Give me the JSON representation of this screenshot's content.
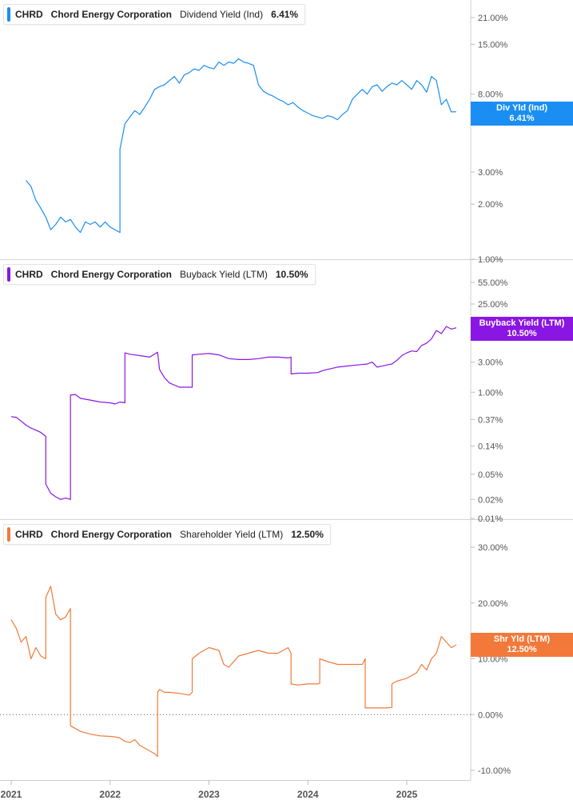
{
  "colors": {
    "dividend": "#1a8ef2",
    "buyback": "#8a16e3",
    "shareholder": "#f2793a",
    "grid": "#d9d9d9",
    "axis_text": "#555555"
  },
  "x_axis": {
    "ticks": [
      {
        "label": "2021",
        "year": 2021.0
      },
      {
        "label": "2022",
        "year": 2022.0
      },
      {
        "label": "2023",
        "year": 2023.0
      },
      {
        "label": "2024",
        "year": 2024.0
      },
      {
        "label": "2025",
        "year": 2025.0
      }
    ]
  },
  "panels": [
    {
      "legend": {
        "ticker": "CHRD",
        "company": "Chord Energy Corporation",
        "metric": "Dividend Yield (Ind)",
        "value": "6.41%"
      },
      "tag": {
        "line1": "Div Yld (Ind)",
        "line2": "6.41%"
      }
    },
    {
      "legend": {
        "ticker": "CHRD",
        "company": "Chord Energy Corporation",
        "metric": "Buyback Yield (LTM)",
        "value": "10.50%"
      },
      "tag": {
        "line1": "Buyback Yield (LTM)",
        "line2": "10.50%"
      }
    },
    {
      "legend": {
        "ticker": "CHRD",
        "company": "Chord Energy Corporation",
        "metric": "Shareholder Yield (LTM)",
        "value": "12.50%"
      },
      "tag": {
        "line1": "Shr Yld (LTM)",
        "line2": "12.50%"
      }
    }
  ],
  "chart_data": [
    {
      "type": "line",
      "series": [
        {
          "name": "Dividend Yield (Ind)",
          "color": "#1a8ef2",
          "x": [
            2021.15,
            2021.2,
            2021.25,
            2021.3,
            2021.35,
            2021.4,
            2021.45,
            2021.5,
            2021.55,
            2021.6,
            2021.65,
            2021.7,
            2021.75,
            2021.8,
            2021.85,
            2021.9,
            2021.95,
            2022.0,
            2022.05,
            2022.1,
            2022.1,
            2022.15,
            2022.2,
            2022.25,
            2022.3,
            2022.35,
            2022.4,
            2022.45,
            2022.5,
            2022.55,
            2022.6,
            2022.65,
            2022.7,
            2022.75,
            2022.8,
            2022.85,
            2022.9,
            2022.95,
            2023.0,
            2023.05,
            2023.1,
            2023.15,
            2023.2,
            2023.25,
            2023.3,
            2023.35,
            2023.4,
            2023.45,
            2023.5,
            2023.55,
            2023.6,
            2023.65,
            2023.7,
            2023.75,
            2023.8,
            2023.85,
            2023.9,
            2023.95,
            2024.0,
            2024.05,
            2024.1,
            2024.15,
            2024.2,
            2024.25,
            2024.3,
            2024.35,
            2024.4,
            2024.45,
            2024.5,
            2024.55,
            2024.6,
            2024.65,
            2024.7,
            2024.75,
            2024.8,
            2024.85,
            2024.9,
            2024.95,
            2025.0,
            2025.05,
            2025.1,
            2025.15,
            2025.2,
            2025.25,
            2025.3,
            2025.35,
            2025.4,
            2025.45,
            2025.5
          ],
          "y": [
            2.7,
            2.5,
            2.1,
            1.9,
            1.7,
            1.45,
            1.55,
            1.7,
            1.6,
            1.65,
            1.5,
            1.4,
            1.6,
            1.55,
            1.6,
            1.5,
            1.6,
            1.5,
            1.45,
            1.4,
            4.0,
            5.5,
            6.0,
            6.5,
            6.2,
            6.8,
            7.5,
            8.5,
            8.8,
            9.0,
            9.5,
            10.0,
            9.2,
            10.2,
            10.5,
            11.0,
            10.8,
            11.5,
            11.2,
            11.0,
            12.0,
            11.5,
            12.0,
            11.8,
            12.5,
            12.0,
            11.8,
            11.5,
            9.0,
            8.3,
            8.0,
            7.8,
            7.5,
            7.3,
            7.0,
            7.2,
            6.8,
            6.5,
            6.3,
            6.1,
            6.0,
            5.9,
            6.1,
            6.0,
            5.8,
            6.2,
            6.5,
            7.5,
            8.0,
            8.5,
            8.0,
            8.8,
            9.0,
            8.3,
            8.8,
            9.2,
            9.0,
            9.5,
            9.0,
            8.5,
            9.5,
            9.0,
            8.2,
            10.0,
            9.5,
            7.0,
            7.5,
            6.4,
            6.41
          ]
        }
      ],
      "ylim": [
        1.0,
        29.0
      ],
      "y_scale": "log",
      "yticks": [
        {
          "label": "21.00%",
          "value": 21.0
        },
        {
          "label": "15.00%",
          "value": 15.0
        },
        {
          "label": "8.00%",
          "value": 8.0
        },
        {
          "label": "6.00%",
          "value": 6.0
        },
        {
          "label": "3.00%",
          "value": 3.0
        },
        {
          "label": "2.00%",
          "value": 2.0
        },
        {
          "label": "1.00%",
          "value": 1.0
        }
      ],
      "current_value": 6.41
    },
    {
      "type": "line",
      "series": [
        {
          "name": "Buyback Yield (LTM)",
          "color": "#8a16e3",
          "x": [
            2021.0,
            2021.05,
            2021.1,
            2021.15,
            2021.2,
            2021.25,
            2021.3,
            2021.35,
            2021.35,
            2021.4,
            2021.45,
            2021.5,
            2021.55,
            2021.6,
            2021.6,
            2021.65,
            2021.7,
            2021.8,
            2021.9,
            2022.0,
            2022.05,
            2022.1,
            2022.15,
            2022.15,
            2022.2,
            2022.3,
            2022.4,
            2022.48,
            2022.5,
            2022.55,
            2022.6,
            2022.7,
            2022.8,
            2022.83,
            2022.83,
            2022.9,
            2023.0,
            2023.1,
            2023.2,
            2023.3,
            2023.4,
            2023.5,
            2023.6,
            2023.7,
            2023.8,
            2023.83,
            2023.83,
            2023.9,
            2024.0,
            2024.1,
            2024.15,
            2024.2,
            2024.3,
            2024.4,
            2024.5,
            2024.6,
            2024.65,
            2024.7,
            2024.8,
            2024.85,
            2024.9,
            2024.95,
            2025.0,
            2025.05,
            2025.1,
            2025.15,
            2025.2,
            2025.25,
            2025.3,
            2025.35,
            2025.4,
            2025.45,
            2025.5
          ],
          "y": [
            0.41,
            0.4,
            0.35,
            0.3,
            0.27,
            0.25,
            0.23,
            0.2,
            0.035,
            0.025,
            0.022,
            0.02,
            0.021,
            0.02,
            0.9,
            0.92,
            0.8,
            0.75,
            0.7,
            0.68,
            0.65,
            0.7,
            0.68,
            4.2,
            4.0,
            3.8,
            3.6,
            4.3,
            2.3,
            1.7,
            1.4,
            1.2,
            1.2,
            1.2,
            3.9,
            4.0,
            4.1,
            3.9,
            3.4,
            3.3,
            3.3,
            3.4,
            3.6,
            3.6,
            3.5,
            3.6,
            1.95,
            2.0,
            2.0,
            2.05,
            2.2,
            2.3,
            2.5,
            2.6,
            2.7,
            2.8,
            3.0,
            2.5,
            2.7,
            2.8,
            3.2,
            3.8,
            4.2,
            4.5,
            4.4,
            5.5,
            6.0,
            7.0,
            9.5,
            8.5,
            11.0,
            10.0,
            10.5
          ]
        }
      ],
      "ylim": [
        0.009,
        90.0
      ],
      "y_scale": "log",
      "yticks": [
        {
          "label": "55.00%",
          "value": 55.0
        },
        {
          "label": "25.00%",
          "value": 25.0
        },
        {
          "label": "3.00%",
          "value": 3.0
        },
        {
          "label": "1.00%",
          "value": 1.0
        },
        {
          "label": "0.37%",
          "value": 0.37
        },
        {
          "label": "0.14%",
          "value": 0.14
        },
        {
          "label": "0.05%",
          "value": 0.05
        },
        {
          "label": "0.02%",
          "value": 0.02
        },
        {
          "label": "0.01%",
          "value": 0.01
        }
      ],
      "current_value": 10.5
    },
    {
      "type": "line",
      "series": [
        {
          "name": "Shareholder Yield (LTM)",
          "color": "#f2793a",
          "x": [
            2021.0,
            2021.05,
            2021.1,
            2021.15,
            2021.2,
            2021.25,
            2021.3,
            2021.35,
            2021.35,
            2021.4,
            2021.45,
            2021.5,
            2021.55,
            2021.6,
            2021.6,
            2021.65,
            2021.7,
            2021.8,
            2021.9,
            2022.0,
            2022.05,
            2022.1,
            2022.15,
            2022.2,
            2022.25,
            2022.3,
            2022.35,
            2022.4,
            2022.45,
            2022.48,
            2022.48,
            2022.5,
            2022.55,
            2022.6,
            2022.7,
            2022.8,
            2022.83,
            2022.83,
            2022.9,
            2023.0,
            2023.1,
            2023.15,
            2023.2,
            2023.3,
            2023.4,
            2023.5,
            2023.6,
            2023.7,
            2023.8,
            2023.83,
            2023.83,
            2023.9,
            2024.0,
            2024.1,
            2024.12,
            2024.12,
            2024.2,
            2024.3,
            2024.4,
            2024.55,
            2024.58,
            2024.58,
            2024.7,
            2024.8,
            2024.85,
            2024.85,
            2024.9,
            2025.0,
            2025.05,
            2025.1,
            2025.15,
            2025.2,
            2025.25,
            2025.3,
            2025.35,
            2025.4,
            2025.45,
            2025.5
          ],
          "y": [
            17.0,
            15.5,
            13.0,
            14.0,
            10.0,
            12.0,
            10.5,
            10.0,
            21.0,
            23.0,
            18.0,
            17.0,
            17.5,
            19.0,
            -2.0,
            -2.5,
            -3.0,
            -3.5,
            -3.8,
            -3.9,
            -4.0,
            -4.2,
            -4.8,
            -5.0,
            -4.5,
            -5.5,
            -6.0,
            -6.5,
            -7.0,
            -7.5,
            4.0,
            4.5,
            4.0,
            4.0,
            3.8,
            3.5,
            4.0,
            10.0,
            11.0,
            12.0,
            11.5,
            9.0,
            8.5,
            10.5,
            11.0,
            11.5,
            11.0,
            11.0,
            12.0,
            11.0,
            5.5,
            5.3,
            5.5,
            5.5,
            5.6,
            10.0,
            9.5,
            9.0,
            9.0,
            9.0,
            10.0,
            1.2,
            1.2,
            1.2,
            1.3,
            5.5,
            6.0,
            6.5,
            7.0,
            7.5,
            9.0,
            8.0,
            10.0,
            11.0,
            14.0,
            13.0,
            12.0,
            12.5
          ]
        }
      ],
      "ylim": [
        -10.5,
        31.5
      ],
      "y_scale": "linear",
      "yticks": [
        {
          "label": "30.00%",
          "value": 30.0
        },
        {
          "label": "20.00%",
          "value": 20.0
        },
        {
          "label": "10.00%",
          "value": 10.0
        },
        {
          "label": "0.00%",
          "value": 0.0
        },
        {
          "label": "-10.00%",
          "value": -10.0
        }
      ],
      "zero_line": true,
      "current_value": 12.5
    }
  ]
}
